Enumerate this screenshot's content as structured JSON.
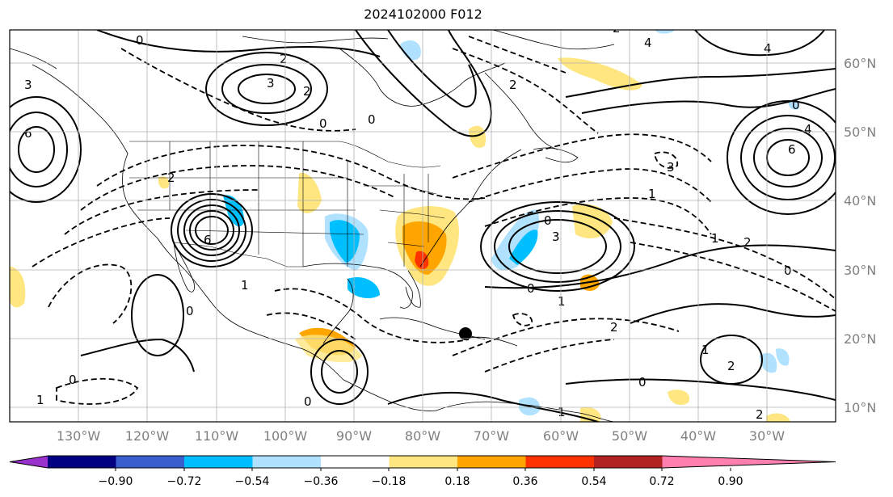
{
  "title": "2024102000 F012",
  "map": {
    "lon_labels": [
      "130°W",
      "120°W",
      "110°W",
      "100°W",
      "90°W",
      "80°W",
      "70°W",
      "60°W",
      "50°W",
      "40°W",
      "30°W"
    ],
    "lat_labels": [
      "60°N",
      "50°N",
      "40°N",
      "30°N",
      "20°N",
      "10°N"
    ],
    "contour_labels": [
      "0",
      "2",
      "3",
      "2",
      "0",
      "6",
      "3",
      "6",
      "0",
      "1",
      "1",
      "2",
      "0",
      "2",
      "3",
      "4",
      "4",
      "2",
      "0",
      "1",
      "0",
      "2",
      "1",
      "3",
      "0",
      "6",
      "4",
      "0",
      "2",
      "1",
      "1",
      "2",
      "0",
      "1",
      "2",
      "0",
      "0"
    ]
  },
  "colorbar": {
    "tick_labels": [
      "−0.90",
      "−0.72",
      "−0.54",
      "−0.36",
      "−0.18",
      "0.18",
      "0.36",
      "0.54",
      "0.72",
      "0.90"
    ],
    "colors": [
      "#9932cc",
      "#000080",
      "#3a5fcd",
      "#00bfff",
      "#b0e2ff",
      "#ffffff",
      "#ffe680",
      "#ffa500",
      "#ff3300",
      "#b22222",
      "#ff7fae"
    ]
  }
}
